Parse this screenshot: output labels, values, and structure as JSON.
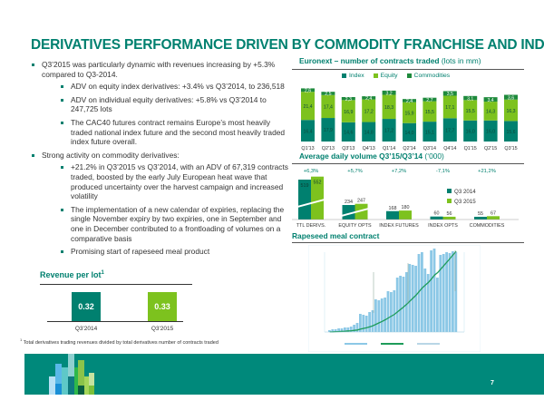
{
  "title": "DERIVATIVES PERFORMANCE DRIVEN BY COMMODITY FRANCHISE AND INDEX",
  "bullets": {
    "q3_dynamic": "Q3’2015 was particularly dynamic with revenues increasing by +5.3% compared to Q3-2014.",
    "adv_equity_index": "ADV on equity index derivatives: +3.4% vs Q3’2014, to 236,518",
    "adv_individual": "ADV on individual equity derivatives: +5.8% vs Q3’2014 to 247,725 lots",
    "cac40": "The CAC40 futures contract remains Europe’s most heavily traded national index future and the second most heavily traded index future overall.",
    "commodity": "Strong activity on commodity derivatives:",
    "commodity_growth": "+21.2% in Q3’2015 vs Q3’2014, with an ADV of 67,319 contracts traded, boosted by the early July European heat wave that produced uncertainty over the harvest campaign and increased volatility",
    "calendar": "The implementation of a new calendar of expiries, replacing the single November expiry by two expiries, one in September and one in December contributed to a frontloading of volumes on a comparative basis",
    "rapeseed": "Promising start of rapeseed meal product"
  },
  "revenue": {
    "title": "Revenue per lot",
    "footnote_mark": "1",
    "footnote": "Total derivatives trading revenues divided by total derivatives number of contracts traded"
  },
  "contracts_header": {
    "bold": "Euronext – number of contracts traded",
    "light": "(lots in mm)"
  },
  "adv_header": {
    "bold": "Average daily volume Q3’15/Q3’14",
    "light": "(‘000)"
  },
  "rapeseed_header": "Rapeseed meal contract",
  "page_number": "7",
  "colors": {
    "teal": "#00806f",
    "lime": "#7dc21e",
    "dark_green": "#1e8a3c",
    "sky": "#8cc8e6"
  },
  "chart_data": [
    {
      "type": "bar",
      "title": "Revenue per lot",
      "categories": [
        "Q3'2014",
        "Q3'2015"
      ],
      "values": [
        0.32,
        0.33
      ],
      "labels": [
        "0.32",
        "0.33"
      ]
    },
    {
      "type": "bar",
      "stacked": true,
      "title": "Euronext – number of contracts traded (lots in mm)",
      "categories": [
        "Q1'13",
        "Q2'13",
        "Q3'13",
        "Q4'13",
        "Q1'14",
        "Q2'14",
        "Q3'14",
        "Q4'14",
        "Q1'15",
        "Q2'15",
        "Q3'15"
      ],
      "legend": [
        "Index",
        "Equity",
        "Commodities"
      ],
      "legend_position": "top",
      "series": [
        {
          "name": "Index",
          "values": [
            16.4,
            17.9,
            14.6,
            14.8,
            17.2,
            14.0,
            15.1,
            17.7,
            16.0,
            16.0,
            15.6
          ],
          "labels": [
            "16,4",
            "17,9",
            "14,6",
            "14,8",
            "17,2",
            "14,0",
            "15,1",
            "17,7",
            "16,0",
            "16,0",
            "15,6"
          ]
        },
        {
          "name": "Equity",
          "values": [
            21.4,
            17.4,
            16.9,
            17.2,
            18.3,
            15.9,
            15.5,
            17.1,
            15.5,
            14.3,
            16.3
          ],
          "labels": [
            "21,4",
            "17,4",
            "16,9",
            "17,2",
            "18,3",
            "15,9",
            "15,5",
            "17,1",
            "15,5",
            "14,3",
            "16,3"
          ]
        },
        {
          "name": "Commodities",
          "values": [
            2.6,
            2.5,
            2.3,
            2.4,
            3.2,
            2.4,
            2.7,
            3.5,
            3.1,
            3.4,
            3.6
          ],
          "labels": [
            "2,6",
            "2,5",
            "2,3",
            "2,4",
            "3,2",
            "2,4",
            "2,7",
            "3,5",
            "3,1",
            "3,4",
            "3,6"
          ]
        }
      ]
    },
    {
      "type": "bar",
      "title": "Average daily volume Q3’15/Q3’14 ('000)",
      "categories": [
        "TTL DERIVS.",
        "EQUITY OPTS",
        "INDEX FUTURES",
        "INDEX OPTS",
        "COMMODITIES"
      ],
      "changes": [
        "+6,3%",
        "+5,7%",
        "+7,2%",
        "-7,1%",
        "+21,2%"
      ],
      "legend": [
        "Q3 2014",
        "Q3 2015"
      ],
      "legend_position": "right",
      "series": [
        {
          "name": "Q3 2014",
          "values": [
            519,
            234,
            168,
            60,
            55
          ]
        },
        {
          "name": "Q3 2015",
          "values": [
            552,
            247,
            180,
            56,
            67
          ]
        }
      ],
      "broken_axis": true
    },
    {
      "type": "bar",
      "title": "Rapeseed meal contract",
      "note": "Trend of bars with cumulative line; axis labels not legible"
    }
  ]
}
